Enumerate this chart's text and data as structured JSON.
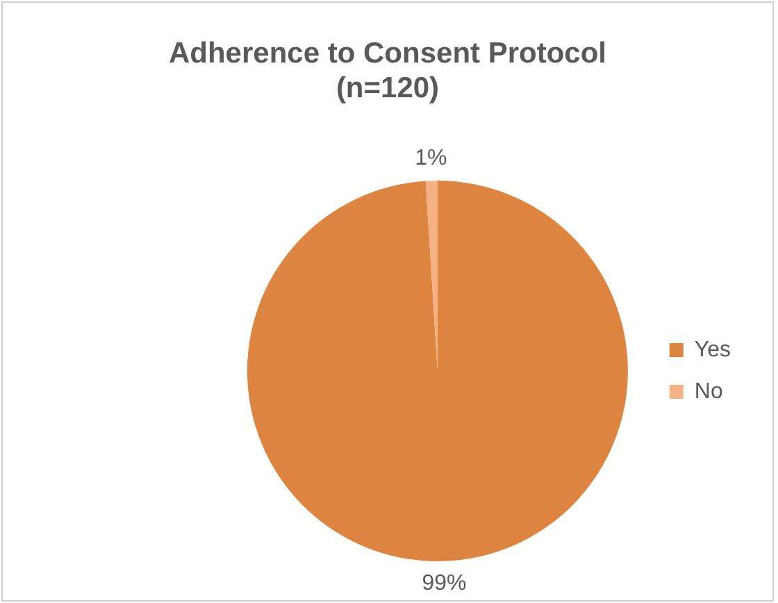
{
  "chart_data": {
    "type": "pie",
    "title": "Adherence to Consent Protocol (n=120)",
    "categories": [
      "Yes",
      "No"
    ],
    "values": [
      99,
      1
    ],
    "colors": [
      "#dd843f",
      "#f4b183"
    ],
    "value_labels": [
      "99%",
      "1%"
    ],
    "legend": "right"
  }
}
